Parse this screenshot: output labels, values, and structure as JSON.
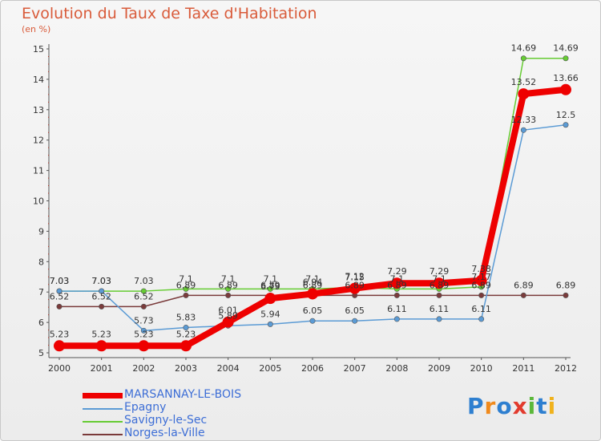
{
  "chart_data": {
    "type": "line",
    "title": "Evolution du Taux de Taxe d'Habitation",
    "subtitle": "(en %)",
    "ylim": [
      5,
      15
    ],
    "yticks": [
      "5",
      "6",
      "7",
      "8",
      "9",
      "10",
      "11",
      "12",
      "13",
      "14",
      "15"
    ],
    "categories": [
      "2000",
      "2001",
      "2002",
      "2003",
      "2004",
      "2005",
      "2006",
      "2007",
      "2008",
      "2009",
      "2010",
      "2011",
      "2012"
    ],
    "series": [
      {
        "name": "Norges-la-Ville",
        "color": "#7a3b3b",
        "width": 1.5,
        "values": [
          6.52,
          6.52,
          6.52,
          6.89,
          6.89,
          6.89,
          6.89,
          6.89,
          6.89,
          6.89,
          6.89,
          6.89,
          6.89
        ],
        "labels": [
          "6.52",
          "6.52",
          "6.52",
          "6.89",
          "6.89",
          "6.89",
          "6.89",
          "6.89",
          "6.89",
          "6.89",
          "6.89",
          "6.89",
          "6.89"
        ]
      },
      {
        "name": "Savigny-le-Sec",
        "color": "#66cc33",
        "width": 1.5,
        "values": [
          7.03,
          7.03,
          7.03,
          7.1,
          7.1,
          7.1,
          7.1,
          7.15,
          7.1,
          7.1,
          7.17,
          14.69,
          14.69
        ],
        "labels": [
          "7.03",
          "7.03",
          "7.03",
          "7.1",
          "7.1",
          "7.1",
          "7.1",
          "7.15",
          "7.1",
          "7.1",
          "7.17",
          "14.69",
          "14.69"
        ]
      },
      {
        "name": "Epagny",
        "color": "#5b9bd5",
        "width": 1.5,
        "values": [
          7.03,
          7.03,
          5.73,
          5.83,
          5.89,
          5.94,
          6.05,
          6.05,
          6.11,
          6.11,
          6.11,
          12.33,
          12.5
        ],
        "labels": [
          "7.03",
          "7.03",
          "5.73",
          "5.83",
          "5.89",
          "5.94",
          "6.05",
          "6.05",
          "6.11",
          "6.11",
          "6.11",
          "12.33",
          "12.5"
        ]
      },
      {
        "name": "MARSANNAY-LE-BOIS",
        "color": "#ee0000",
        "width": 8,
        "values": [
          5.23,
          5.23,
          5.23,
          5.23,
          6.01,
          6.79,
          6.94,
          7.12,
          7.29,
          7.29,
          7.38,
          13.52,
          13.66
        ],
        "labels": [
          "5.23",
          "5.23",
          "5.23",
          "5.23",
          "6.01",
          "6.79",
          "6.94",
          "7.12",
          "7.29",
          "7.29",
          "7.38",
          "13.52",
          "13.66"
        ]
      }
    ],
    "legend": [
      "MARSANNAY-LE-BOIS",
      "Epagny",
      "Savigny-le-Sec",
      "Norges-la-Ville"
    ],
    "legend_position": "bottom-left",
    "grid": false
  },
  "logo": {
    "text": "Proxiti"
  }
}
